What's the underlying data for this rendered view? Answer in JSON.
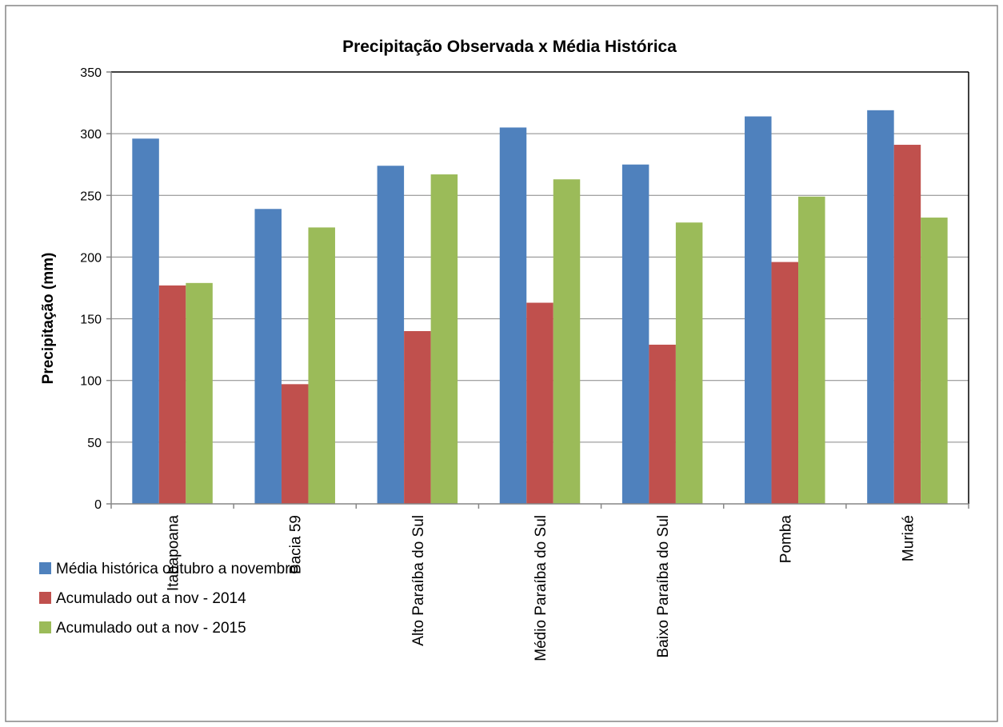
{
  "chart_data": {
    "type": "bar",
    "title": "Precipitação Observada x Média Histórica",
    "xlabel": "",
    "ylabel": "Precipitação (mm)",
    "ylim": [
      0,
      350
    ],
    "yticks": [
      0,
      50,
      100,
      150,
      200,
      250,
      300,
      350
    ],
    "grid": true,
    "legend_position": "bottom-left",
    "categories": [
      "Itabapoana",
      "Bacia 59",
      "Alto Paraíba do Sul",
      "Médio Paraíba do Sul",
      "Baixo Paraíba do Sul",
      "Pomba",
      "Muriaé"
    ],
    "series": [
      {
        "name": "Média histórica outubro a novembro",
        "color": "#4F81BD",
        "values": [
          296,
          239,
          274,
          305,
          275,
          314,
          319
        ]
      },
      {
        "name": "Acumulado out a nov - 2014",
        "color": "#C0504D",
        "values": [
          177,
          97,
          140,
          163,
          129,
          196,
          291
        ]
      },
      {
        "name": "Acumulado out a nov - 2015",
        "color": "#9BBB59",
        "values": [
          179,
          224,
          267,
          263,
          228,
          249,
          232
        ]
      }
    ]
  }
}
